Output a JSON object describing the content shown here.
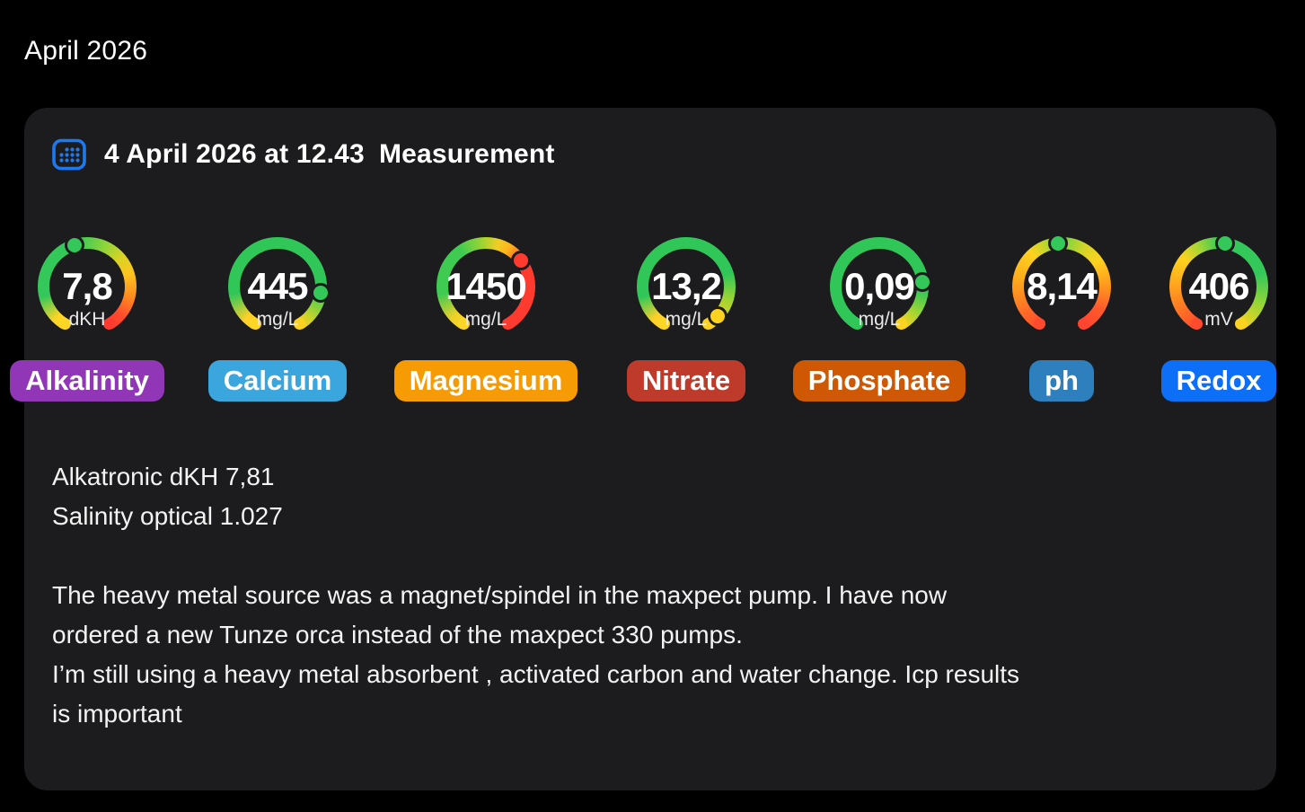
{
  "page": {
    "title": "April 2026",
    "background": "#000000"
  },
  "card": {
    "background": "#1c1c1e",
    "header": {
      "icon": "calendar-icon",
      "icon_color": "#1b7af2",
      "date": "4 April 2026 at 12.43",
      "type": "Measurement"
    },
    "gauges": [
      {
        "id": "alkalinity",
        "label": "Alkalinity",
        "value": "7,8",
        "unit": "dKH",
        "pill_color": "#9036b6",
        "dot_color": "#34c759",
        "dot_angle_deg": 343,
        "arc_stops": "#ffd526 0%, #ffd526 4%, #34c85a 13%, #34c85a 38%, #8bd53a 48%, #d6d325 55%, #ffc51f 62%, #ff8e1f 70%, #ff4a2d 78%, #ff3b30 83.3%",
        "cap_colors": [
          "#ffd526",
          "#ff3b30"
        ]
      },
      {
        "id": "calcium",
        "label": "Calcium",
        "value": "445",
        "unit": "mg/L",
        "pill_color": "#3ba5de",
        "dot_color": "#34c759",
        "dot_angle_deg": 98,
        "arc_stops": "#ffd526 0%, #ffd029 4%, #30c758 14%, #30c758 68%, #7ed23f 74%, #cbd32a 79%, #ffd21f 83.3%",
        "cap_colors": [
          "#ffd526",
          "#ffd21f"
        ]
      },
      {
        "id": "magnesium",
        "label": "Magnesium",
        "value": "1450",
        "unit": "mg/L",
        "pill_color": "#f79b04",
        "dot_color": "#ff3b30",
        "dot_angle_deg": 53,
        "arc_stops": "#ffd526 0%, #ebd028 5%, #3fcb52 14%, #3fcb52 32%, #9ad434 40%, #f0ce24 46%, #ffb51c 50%, #ff6a28 55%, #ff3b30 59%, #ff3b30 83.3%",
        "cap_colors": [
          "#ffd526",
          "#ff3b30"
        ]
      },
      {
        "id": "nitrate",
        "label": "Nitrate",
        "value": "13,2",
        "unit": "mg/L",
        "pill_color": "#be3b2b",
        "dot_color": "#ffd21f",
        "dot_angle_deg": 133,
        "arc_stops": "#ffd526 0%, #ffd028 4%, #30c758 13%, #30c758 62%, #9ad434 71%, #d3d328 77%, #ffd21f 83.3%",
        "cap_colors": [
          "#ffd526",
          "#ffd21f"
        ]
      },
      {
        "id": "phosphate",
        "label": "Phosphate",
        "value": "0,09",
        "unit": "mg/L",
        "pill_color": "#ce5803",
        "dot_color": "#34c759",
        "dot_angle_deg": 84,
        "arc_stops": "#30c758 0%, #30c758 68%, #8ad43a 75%, #d3d328 80%, #ffd21f 83.3%",
        "cap_colors": [
          "#30c758",
          "#ffd21f"
        ]
      },
      {
        "id": "ph",
        "label": "ph",
        "value": "8,14",
        "unit": "",
        "pill_color": "#2e7fbe",
        "dot_color": "#34c759",
        "dot_angle_deg": 355,
        "arc_stops": "#ff4a2d 0%, #ff7a24 10%, #ffae1c 20%, #ffd21f 30%, #b8d72c 36%, #6fcf45 40%, #8bd53a 44%, #d2d428 50%, #ffd21f 57%, #ff9a1e 66%, #ff5a2b 75%, #ff4430 83.3%",
        "cap_colors": [
          "#ff4a2d",
          "#ff4430"
        ]
      },
      {
        "id": "redox",
        "label": "Redox",
        "value": "406",
        "unit": "mV",
        "pill_color": "#0d6ef8",
        "dot_color": "#34c759",
        "dot_angle_deg": 8,
        "arc_stops": "#ff4a2d 0%, #ff7a24 9%, #ffae1c 19%, #ffd21f 27%, #a8d633 34%, #34c85a 42%, #34c85a 62%, #8bd53a 72%, #d9d326 80%, #ffd21f 83.3%",
        "cap_colors": [
          "#ff4a2d",
          "#ffd21f"
        ]
      }
    ],
    "notes": [
      "Alkatronic dKH 7,81",
      "Salinity optical 1.027"
    ],
    "paragraph": [
      "The heavy metal source was a magnet/spindel in the maxpect pump. I have now",
      "ordered a new Tunze orca instead of the maxpect 330 pumps.",
      "I’m still using a heavy metal absorbent , activated carbon and water change. Icp results",
      "is important"
    ]
  }
}
